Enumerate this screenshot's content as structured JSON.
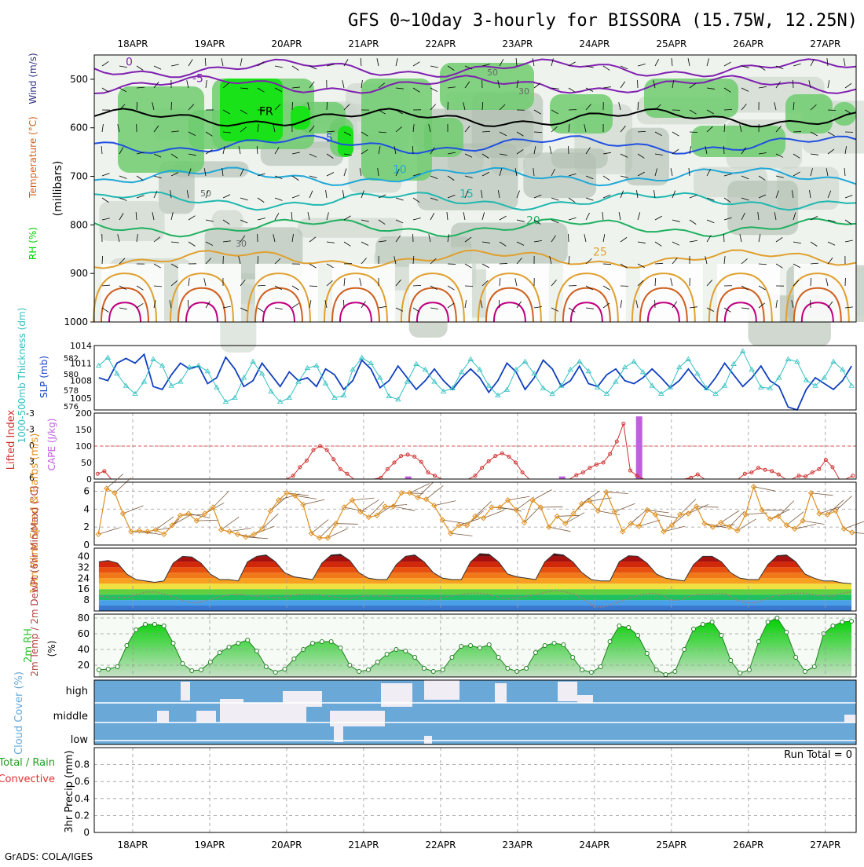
{
  "title": "GFS 0~10day 3-hourly for BISSORA (15.75W, 12.25N)",
  "footer": "GrADS: COLA/IGES",
  "run_total": "Run Total = 0",
  "colors": {
    "rh_green": "#00d000",
    "grey": "#b8c8b8",
    "isotherm_blue": "#2050e0",
    "isotherm_cyan": "#20a8d8",
    "isotherm_teal": "#20b8b0",
    "isotherm_green": "#20b060",
    "isotherm_orange": "#e0a030",
    "isotherm_red": "#d06020",
    "isotherm_magenta": "#c00080",
    "purple": "#8020b0",
    "slp": "#1040c0",
    "thickness": "#30c0c0",
    "cape": "#c060e0",
    "lifted": "#d03030",
    "wind10": "#e09020",
    "rh2m": "#30c030",
    "cloud_bg": "#6aa8d8"
  },
  "chart_data": [
    {
      "panel": "upper-air",
      "type": "contour",
      "ylabel": "(millibars)",
      "legend_labels": [
        "RH (%)",
        "Temperature (°C)",
        "Wind (m/s)"
      ],
      "ylim": [
        1000,
        450
      ],
      "ytick_labels": [
        "500",
        "600",
        "700",
        "800",
        "900",
        "1000"
      ],
      "x_tick_labels": [
        "18APR",
        "19APR",
        "20APR",
        "21APR",
        "22APR",
        "23APR",
        "24APR",
        "25APR",
        "26APR",
        "27APR"
      ],
      "isotherms": [
        {
          "label": "0",
          "level": 478
        },
        {
          "label": "-5",
          "level": 512
        },
        {
          "label": "FR",
          "level": 580
        },
        {
          "label": "5",
          "level": 635
        },
        {
          "label": "10",
          "level": 700
        },
        {
          "label": "15",
          "level": 750
        },
        {
          "label": "20",
          "level": 805
        },
        {
          "label": "25",
          "level": 870
        }
      ],
      "rh_labels": [
        "30",
        "50"
      ]
    },
    {
      "panel": "slp-thickness",
      "type": "line",
      "ylabel_left": "1000-500mb Thickness (dm)",
      "ylabel_right": "SLP (mb)",
      "slp_ticks": [
        "1014",
        "1011",
        "1008",
        "1005"
      ],
      "thickness_ticks": [
        "582",
        "580",
        "578",
        "576"
      ],
      "slp_range": [
        1003,
        1014
      ],
      "thickness_range": [
        575.5,
        583.5
      ],
      "slp": [
        1008.5,
        1008,
        1011,
        1011.8,
        1011,
        1012.5,
        1007,
        1006.5,
        1009,
        1011,
        1010,
        1010.5,
        1007.5,
        1008.5,
        1012,
        1010,
        1007,
        1008,
        1011,
        1009,
        1007,
        1009.5,
        1008,
        1008.5,
        1007,
        1010,
        1009,
        1006.5,
        1008,
        1011.5,
        1010,
        1006.8,
        1008,
        1010.5,
        1008.5,
        1006.5,
        1008,
        1010,
        1008,
        1006.5,
        1008.5,
        1010,
        1008.5,
        1006,
        1008,
        1011,
        1009.5,
        1006.5,
        1008.5,
        1011.5,
        1010,
        1007,
        1008,
        1010.5,
        1007.5,
        1007,
        1009,
        1010,
        1008,
        1007.5,
        1008.5,
        1010,
        1008.5,
        1006.8,
        1008,
        1010,
        1008,
        1006.5,
        1008.5,
        1011,
        1009,
        1007,
        1008.5,
        1010.5,
        1008,
        1007,
        1003.5,
        1003,
        1006.5,
        1008.5,
        1007.5,
        1006.5,
        1008,
        1010.5
      ],
      "thickness": [
        581,
        582,
        580,
        578.5,
        577.5,
        579,
        581.8,
        581,
        578.5,
        579,
        580.8,
        581,
        580.3,
        578.3,
        576.5,
        577,
        579.5,
        581.5,
        580,
        577.8,
        576.5,
        577,
        579,
        580.7,
        581,
        578.8,
        577,
        577.3,
        580.5,
        582,
        581.3,
        579.5,
        577.2,
        576.8,
        579,
        581.2,
        580.5,
        579,
        577.8,
        578.2,
        580.2,
        581.8,
        580.5,
        578.5,
        577.3,
        578,
        580.5,
        581.5,
        580,
        578.2,
        577.5,
        578.5,
        580.5,
        581.5,
        580.3,
        578.3,
        577.5,
        579,
        580.8,
        581.5,
        580.2,
        578.5,
        577.5,
        578.3,
        580.8,
        581.8,
        580,
        578.2,
        577.5,
        578.5,
        581.2,
        582.8,
        580.5,
        578.3,
        578.2,
        579.5,
        581.8,
        581.5,
        579.2,
        578.5,
        579.5,
        581.5,
        580.5,
        578.5
      ]
    },
    {
      "panel": "cape-lifted-index",
      "type": "bar+line",
      "ylabel_left": "Lifted Index",
      "ylabel_right": "CAPE (J/kg)",
      "cape_ticks": [
        "200",
        "150",
        "100",
        "50",
        "0"
      ],
      "li_ticks": [
        "-3",
        "-3",
        "0",
        "3",
        "6"
      ],
      "cape_range": [
        0,
        200
      ],
      "cape": [
        {
          "x_day": 5.58,
          "value": 8
        },
        {
          "x_day": 3.58,
          "value": 8
        },
        {
          "x_day": 6.58,
          "value": 190
        }
      ],
      "lifted_index": [
        5.2,
        4.8,
        6,
        6,
        6,
        6,
        6,
        6,
        6,
        6,
        6,
        6,
        6,
        6,
        6,
        6,
        6,
        6,
        6,
        6,
        6,
        6,
        6,
        6,
        6,
        6,
        6,
        6,
        6,
        5.5,
        4.2,
        3.2,
        1.6,
        1.0,
        1.6,
        3,
        4.5,
        5.2,
        6,
        6,
        6,
        6,
        5.8,
        4.5,
        3.5,
        2.5,
        2.3,
        2.6,
        3.4,
        5,
        5.5,
        6,
        6,
        6,
        6,
        6,
        5.5,
        4.3,
        3.3,
        2.5,
        2.1,
        2.6,
        3.5,
        5,
        6,
        6,
        6,
        6,
        6,
        6,
        6,
        5.4,
        5,
        4.3,
        3.8,
        3.5,
        2.2,
        0.3,
        -2.4,
        4.7,
        5.5,
        6,
        6,
        6,
        6,
        6,
        6,
        6,
        5.8,
        5.3,
        6,
        6,
        6,
        6,
        6,
        6,
        5.2,
        5,
        4.3,
        4.6,
        4.8,
        5.3,
        6,
        6,
        5.5,
        5.6,
        5,
        4.5,
        3.1,
        4.2,
        6,
        6,
        5.5
      ]
    },
    {
      "panel": "wind10m",
      "type": "line",
      "ylabel": "10m Wind Speed & Barbs (m/s)",
      "yticks": [
        "6",
        "4",
        "2",
        "0"
      ],
      "ylim": [
        0,
        7
      ],
      "values": [
        1.2,
        6.3,
        5.8,
        3.5,
        1.5,
        1.6,
        1.5,
        1.7,
        1.2,
        2.2,
        3.3,
        3.5,
        2.7,
        3.5,
        4.2,
        1.7,
        1.5,
        1.2,
        0.9,
        1.2,
        1.8,
        3.8,
        5.0,
        5.8,
        5.5,
        4.5,
        1.3,
        0.8,
        0.8,
        2.4,
        4.2,
        5.0,
        3.7,
        3.1,
        3.3,
        4.3,
        4.3,
        5.8,
        5.8,
        5.3,
        5.1,
        4.4,
        2.8,
        1.3,
        2.2,
        2.2,
        3.2,
        3.0,
        4.2,
        4.2,
        5.0,
        3.9,
        2.5,
        5.0,
        4.2,
        2.0,
        3.2,
        2.4,
        3.5,
        4.6,
        4.9,
        3.8,
        5.9,
        3.7,
        1.5,
        2.4,
        2.1,
        3.9,
        3.4,
        1.5,
        2.2,
        3.4,
        3.5,
        4.3,
        2.4,
        2.0,
        2.5,
        2.0,
        1.6,
        3.4,
        6.5,
        3.9,
        2.9,
        3.2,
        2.2,
        1.8,
        2.7,
        5.8,
        3.5,
        3.4,
        3.8,
        1.8,
        1.4
      ]
    },
    {
      "panel": "temperature-2m",
      "type": "area",
      "ylabel": "2m Temp / 2m DewPt (6hr Min/Max) (°C)",
      "yticks": [
        "40",
        "32",
        "24",
        "16",
        "8"
      ],
      "ylim": [
        0,
        46
      ],
      "temp": [
        36,
        37,
        35,
        27,
        23,
        22,
        21,
        22,
        35,
        40,
        39.5,
        35,
        27,
        23,
        23,
        22,
        36,
        40,
        41,
        36,
        28,
        25,
        24,
        23,
        35,
        41,
        41.5,
        37,
        28,
        24,
        23,
        23,
        34,
        40,
        41,
        36,
        28,
        24,
        23,
        23,
        36,
        42,
        41.5,
        36,
        27,
        25,
        24,
        23,
        36,
        42,
        41,
        36,
        28,
        23,
        22,
        22,
        36,
        40.5,
        40,
        35,
        27,
        24,
        23,
        22,
        34,
        40,
        40,
        36,
        28,
        24,
        23,
        23,
        34,
        40.5,
        41,
        36,
        27,
        24,
        22,
        22,
        20.5,
        20
      ],
      "dewpt": [
        11,
        10,
        10,
        10,
        12,
        14,
        14,
        12,
        10,
        7,
        6,
        7,
        9,
        11,
        12,
        12,
        11,
        11,
        10,
        10,
        11,
        12,
        12,
        12,
        11,
        10,
        9,
        10,
        11,
        11,
        11,
        10,
        10,
        10,
        9,
        8,
        10,
        11,
        12,
        13,
        13,
        12,
        10,
        9,
        10,
        11,
        12,
        14,
        15,
        14,
        12,
        8,
        3,
        3,
        5,
        8,
        10,
        12,
        13,
        12,
        8,
        8,
        11,
        12,
        12,
        13,
        12,
        8,
        6,
        6,
        9,
        11,
        12,
        13,
        13,
        12,
        11,
        11,
        13,
        14
      ]
    },
    {
      "panel": "rh-2m",
      "type": "area",
      "ylabel": "2m RH (%)",
      "yticks": [
        "80",
        "60",
        "40",
        "20"
      ],
      "ylim": [
        5,
        85
      ],
      "values": [
        14,
        15,
        18,
        45,
        65,
        72,
        72,
        70,
        48,
        22,
        13,
        14,
        24,
        36,
        43,
        48,
        52,
        38,
        18,
        11,
        15,
        28,
        40,
        48,
        50,
        50,
        42,
        20,
        12,
        14,
        24,
        34,
        40,
        38,
        30,
        16,
        12,
        14,
        30,
        44,
        45,
        42,
        46,
        30,
        16,
        12,
        16,
        36,
        45,
        48,
        46,
        30,
        14,
        11,
        18,
        50,
        70,
        68,
        58,
        35,
        14,
        8,
        12,
        40,
        66,
        72,
        75,
        58,
        26,
        10,
        14,
        50,
        75,
        80,
        62,
        30,
        12,
        18,
        60,
        70,
        75,
        76
      ]
    },
    {
      "panel": "cloud-cover",
      "type": "heatmap",
      "ylabel": "Cloud Cover (%)",
      "rows": [
        "high",
        "middle",
        "low"
      ]
    },
    {
      "panel": "precip",
      "type": "bar",
      "ylabel_left": "Total / Rain / Convective",
      "ylabel_right": "3hr Precip (mm)",
      "yticks": [
        "0.8",
        "0.6",
        "0.4",
        "0.2",
        "0"
      ],
      "ylim": [
        0,
        1.0
      ],
      "values": [],
      "x_tick_labels": [
        "18APR",
        "19APR",
        "20APR",
        "21APR",
        "22APR",
        "23APR",
        "24APR",
        "25APR",
        "26APR",
        "27APR"
      ]
    }
  ]
}
